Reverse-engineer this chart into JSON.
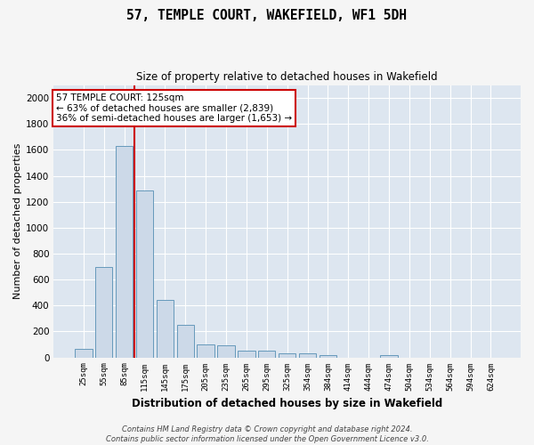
{
  "title": "57, TEMPLE COURT, WAKEFIELD, WF1 5DH",
  "subtitle": "Size of property relative to detached houses in Wakefield",
  "xlabel": "Distribution of detached houses by size in Wakefield",
  "ylabel": "Number of detached properties",
  "bar_color": "#ccd9e8",
  "bar_edge_color": "#6699bb",
  "bg_color": "#dde6f0",
  "grid_color": "#ffffff",
  "fig_bg_color": "#f5f5f5",
  "categories": [
    "25sqm",
    "55sqm",
    "85sqm",
    "115sqm",
    "145sqm",
    "175sqm",
    "205sqm",
    "235sqm",
    "265sqm",
    "295sqm",
    "325sqm",
    "354sqm",
    "384sqm",
    "414sqm",
    "444sqm",
    "474sqm",
    "504sqm",
    "534sqm",
    "564sqm",
    "594sqm",
    "624sqm"
  ],
  "values": [
    68,
    700,
    1630,
    1290,
    440,
    250,
    100,
    90,
    55,
    50,
    30,
    30,
    20,
    0,
    0,
    20,
    0,
    0,
    0,
    0,
    0
  ],
  "ylim": [
    0,
    2100
  ],
  "yticks": [
    0,
    200,
    400,
    600,
    800,
    1000,
    1200,
    1400,
    1600,
    1800,
    2000
  ],
  "red_line_bin_index": 3,
  "annotation_text": "57 TEMPLE COURT: 125sqm\n← 63% of detached houses are smaller (2,839)\n36% of semi-detached houses are larger (1,653) →",
  "annotation_box_color": "#ffffff",
  "annotation_box_edge_color": "#cc0000",
  "red_line_color": "#cc0000",
  "footnote": "Contains HM Land Registry data © Crown copyright and database right 2024.\nContains public sector information licensed under the Open Government Licence v3.0."
}
